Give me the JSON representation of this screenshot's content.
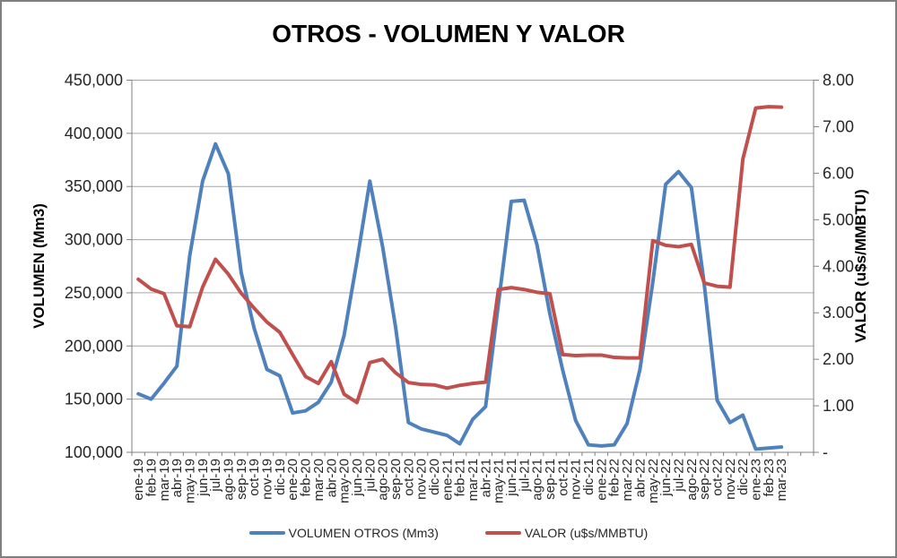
{
  "title": "OTROS - VOLUMEN Y VALOR",
  "chart_data": {
    "type": "line",
    "title": "OTROS - VOLUMEN Y VALOR",
    "xlabel": "",
    "grid": "horizontal",
    "legend_position": "bottom",
    "trailing_empty_slots": 2,
    "categories": [
      "ene-19",
      "feb-19",
      "mar-19",
      "abr-19",
      "may-19",
      "jun-19",
      "jul-19",
      "ago-19",
      "sep-19",
      "oct-19",
      "nov-19",
      "dic-19",
      "ene-20",
      "feb-20",
      "mar-20",
      "abr-20",
      "may-20",
      "jun-20",
      "jul-20",
      "ago-20",
      "sep-20",
      "oct-20",
      "nov-20",
      "dic-20",
      "ene-21",
      "feb-21",
      "mar-21",
      "abr-21",
      "may-21",
      "jun-21",
      "jul-21",
      "ago-21",
      "sep-21",
      "oct-21",
      "nov-21",
      "dic-21",
      "ene-22",
      "feb-22",
      "mar-22",
      "abr-22",
      "may-22",
      "jun-22",
      "jul-22",
      "ago-22",
      "sep-22",
      "oct-22",
      "nov-22",
      "dic-22",
      "ene-23",
      "feb-23",
      "mar-23"
    ],
    "series": [
      {
        "name": "VOLUMEN OTROS (Mm3)",
        "axis": "left",
        "color": "#4F81BD",
        "values": [
          155000,
          150000,
          165000,
          181000,
          285000,
          355000,
          390000,
          362000,
          269000,
          217000,
          178000,
          172000,
          137000,
          139000,
          147000,
          166000,
          210000,
          280000,
          355000,
          293000,
          218000,
          128000,
          122000,
          119000,
          116000,
          108000,
          131000,
          143000,
          240000,
          336000,
          337000,
          295000,
          230000,
          177000,
          130000,
          107000,
          106000,
          107000,
          127000,
          178000,
          260000,
          352000,
          364000,
          349000,
          258000,
          149000,
          128000,
          135000,
          103000,
          104000,
          105000
        ]
      },
      {
        "name": "VALOR (u$s/MMBTU)",
        "axis": "right",
        "color": "#C0504D",
        "values": [
          3.72,
          3.51,
          3.41,
          2.72,
          2.7,
          3.55,
          4.15,
          3.83,
          3.42,
          3.1,
          2.8,
          2.58,
          2.1,
          1.63,
          1.48,
          1.95,
          1.25,
          1.07,
          1.93,
          2.0,
          1.71,
          1.5,
          1.46,
          1.45,
          1.38,
          1.44,
          1.48,
          1.51,
          3.5,
          3.54,
          3.5,
          3.44,
          3.41,
          2.1,
          2.08,
          2.09,
          2.09,
          2.04,
          2.03,
          2.03,
          4.55,
          4.45,
          4.42,
          4.47,
          3.64,
          3.57,
          3.55,
          6.3,
          7.4,
          7.43,
          7.42
        ]
      }
    ],
    "left_axis": {
      "title": "VOLUMEN (Mm3)",
      "min": 100000,
      "max": 450000,
      "step": 50000,
      "tick_labels": [
        "100,000",
        "150,000",
        "200,000",
        "250,000",
        "300,000",
        "350,000",
        "400,000",
        "450,000"
      ]
    },
    "right_axis": {
      "title": "VALOR (u$s/MMBTU)",
      "min": 0,
      "max": 8,
      "step": 1,
      "tick_labels": [
        "-",
        "1.00",
        "2.00",
        "3.00",
        "4.00",
        "5.00",
        "6.00",
        "7.00",
        "8.00"
      ]
    }
  },
  "colors": {
    "volume_line": "#4F81BD",
    "value_line": "#C0504D",
    "gridline": "#A6A6A6",
    "axis_line": "#808080",
    "tick_text": "#262626",
    "title_text": "#000000",
    "frame_border": "#7F7F7F"
  }
}
